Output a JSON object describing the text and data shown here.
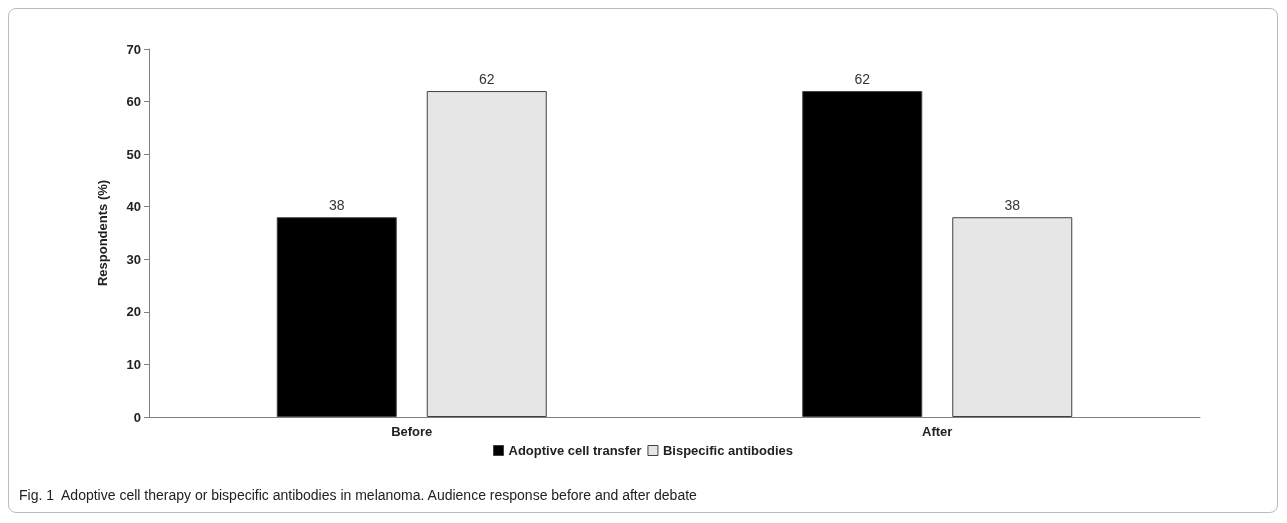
{
  "chart_data": {
    "type": "bar",
    "ylabel": "Respondents (%)",
    "categories": [
      "Before",
      "After"
    ],
    "series": [
      {
        "name": "Adoptive cell transfer",
        "color": "#000000",
        "values": [
          38,
          62
        ]
      },
      {
        "name": "Bispecific antibodies",
        "color": "#e6e6e6",
        "values": [
          62,
          38
        ]
      }
    ],
    "ylim": [
      0,
      70
    ],
    "yticks": [
      0,
      10,
      20,
      30,
      40,
      50,
      60,
      70
    ],
    "grid": false,
    "legend": "bottom",
    "data_labels": true,
    "annotations": [
      "Fig. 1  Adoptive cell therapy or bispecific antibodies in melanoma. Audience response before and after debate"
    ]
  }
}
